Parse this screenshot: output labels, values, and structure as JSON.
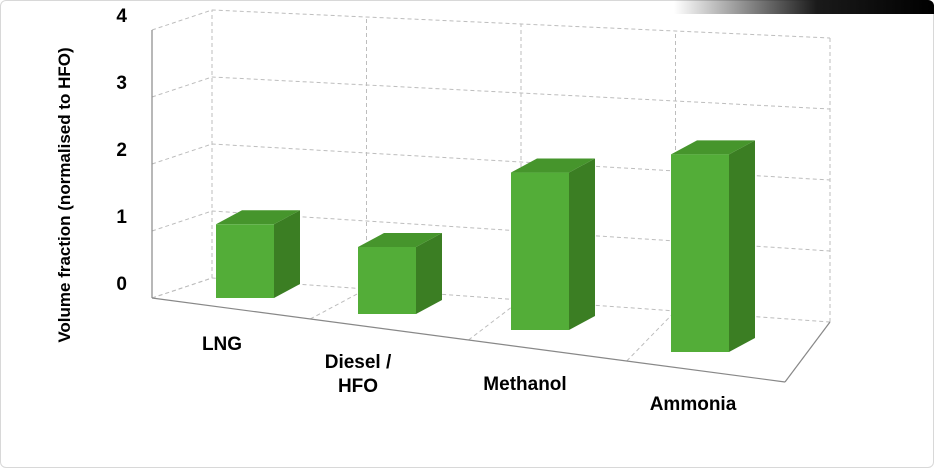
{
  "chart_data": {
    "type": "bar",
    "title": "",
    "xlabel": "",
    "ylabel": "Volume fraction (normalised to HFO)",
    "categories": [
      [
        "LNG"
      ],
      [
        "Diesel /",
        "HFO"
      ],
      [
        "Methanol"
      ],
      [
        "Ammonia"
      ]
    ],
    "values": [
      1.1,
      1.0,
      2.35,
      2.95
    ],
    "ylim": [
      0,
      4
    ],
    "yticks": [
      "0",
      "1",
      "2",
      "3",
      "4"
    ],
    "style": "3d",
    "grid": true,
    "legend": "none",
    "colors": {
      "bar_front": "#53ad38",
      "bar_side": "#3b7e23",
      "bar_top": "#46952c",
      "grid": "#bdbdbd"
    }
  }
}
